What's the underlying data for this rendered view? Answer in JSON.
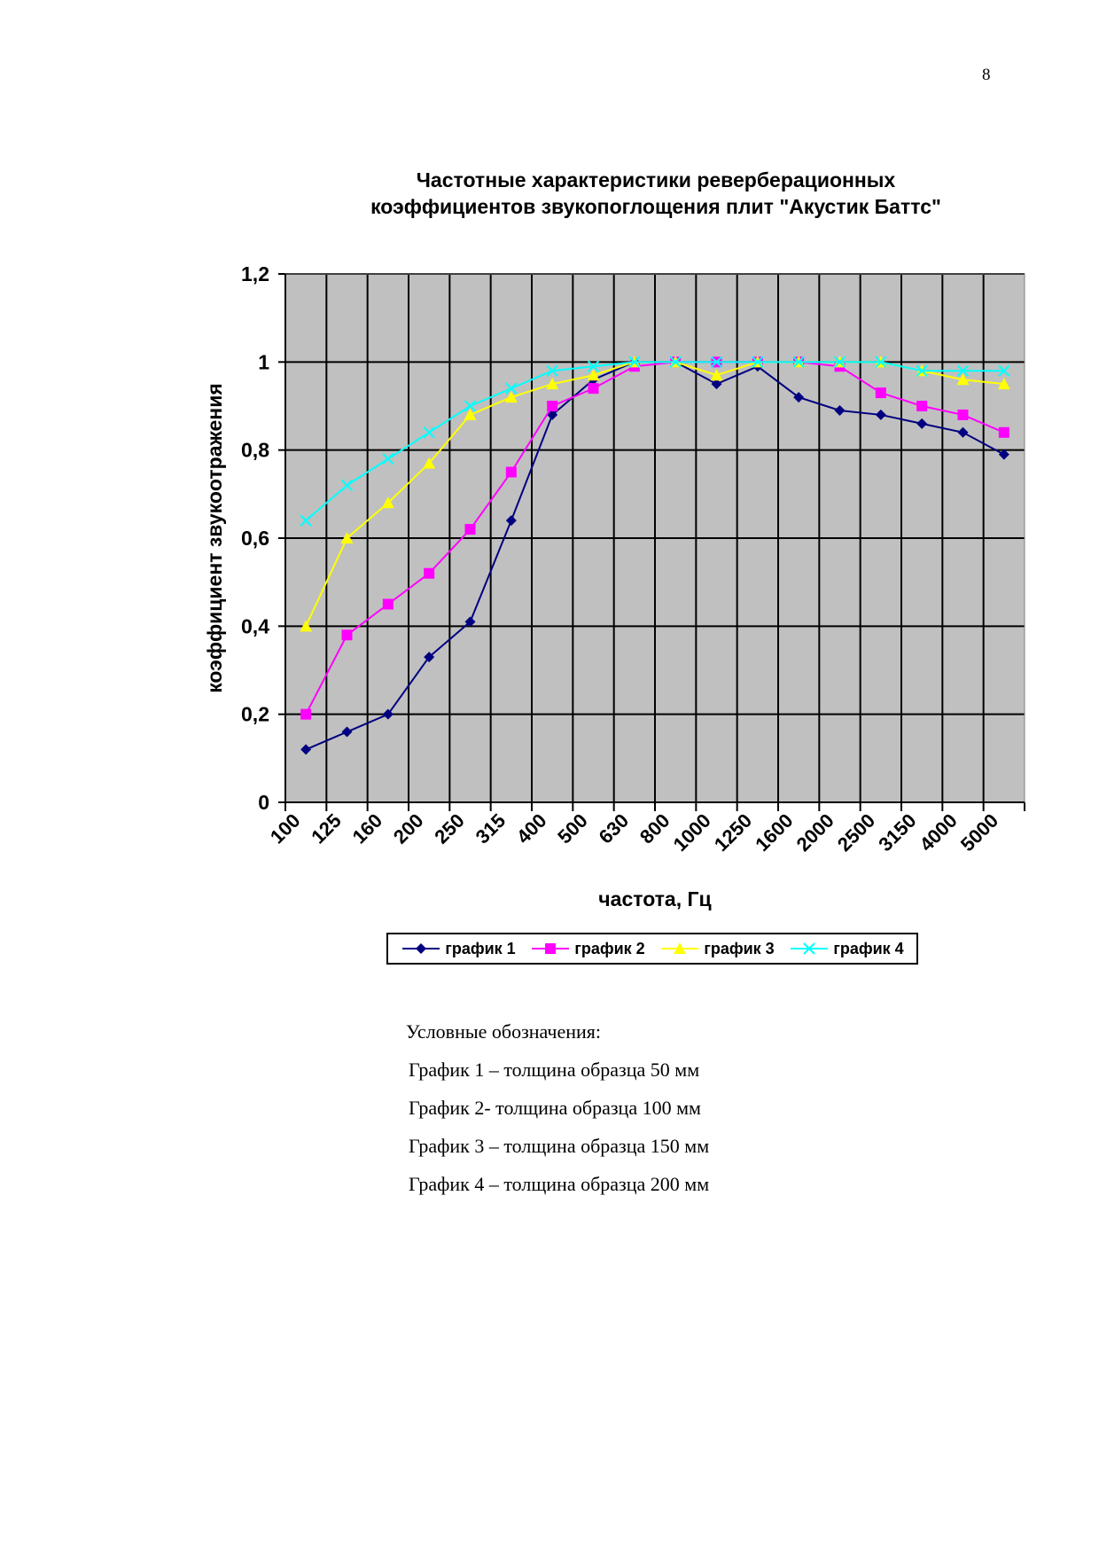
{
  "page": {
    "number": "8"
  },
  "chart_data": {
    "type": "line",
    "title_lines": [
      "Частотные характеристики реверберационных",
      "коэффициентов звукопоглощения плит \"Акустик Баттс\""
    ],
    "xlabel": "частота, Гц",
    "ylabel": "коэффициент звукоотражения",
    "categories": [
      "100",
      "125",
      "160",
      "200",
      "250",
      "315",
      "400",
      "500",
      "630",
      "800",
      "1000",
      "1250",
      "1600",
      "2000",
      "2500",
      "3150",
      "4000",
      "5000"
    ],
    "ylim": [
      0,
      1.2
    ],
    "yticks": [
      "0",
      "0,2",
      "0,4",
      "0,6",
      "0,8",
      "1",
      "1,2"
    ],
    "grid": true,
    "plot_background": "#c0c0c0",
    "legend_position": "bottom",
    "series": [
      {
        "name": "график 1",
        "color": "#000080",
        "marker": "diamond",
        "values": [
          0.12,
          0.16,
          0.2,
          0.33,
          0.41,
          0.64,
          0.88,
          0.96,
          1.0,
          1.0,
          0.95,
          0.99,
          0.92,
          0.89,
          0.88,
          0.86,
          0.84,
          0.79
        ]
      },
      {
        "name": "график 2",
        "color": "#ff00ff",
        "marker": "square",
        "values": [
          0.2,
          0.38,
          0.45,
          0.52,
          0.62,
          0.75,
          0.9,
          0.94,
          0.99,
          1.0,
          1.0,
          1.0,
          1.0,
          0.99,
          0.93,
          0.9,
          0.88,
          0.84
        ]
      },
      {
        "name": "график 3",
        "color": "#ffff00",
        "marker": "triangle",
        "values": [
          0.4,
          0.6,
          0.68,
          0.77,
          0.88,
          0.92,
          0.95,
          0.97,
          1.0,
          1.0,
          0.97,
          1.0,
          1.0,
          1.0,
          1.0,
          0.98,
          0.96,
          0.95
        ]
      },
      {
        "name": "график 4",
        "color": "#00ffff",
        "marker": "x",
        "values": [
          0.64,
          0.72,
          0.78,
          0.84,
          0.9,
          0.94,
          0.98,
          0.99,
          1.0,
          1.0,
          1.0,
          1.0,
          1.0,
          1.0,
          1.0,
          0.98,
          0.98,
          0.98
        ]
      }
    ]
  },
  "notes": {
    "heading": "Условные обозначения:",
    "items": [
      "График 1 – толщина образца 50 мм",
      "График 2- толщина образца 100 мм",
      "График 3 – толщина образца 150 мм",
      "График 4 – толщина образца 200 мм"
    ]
  }
}
